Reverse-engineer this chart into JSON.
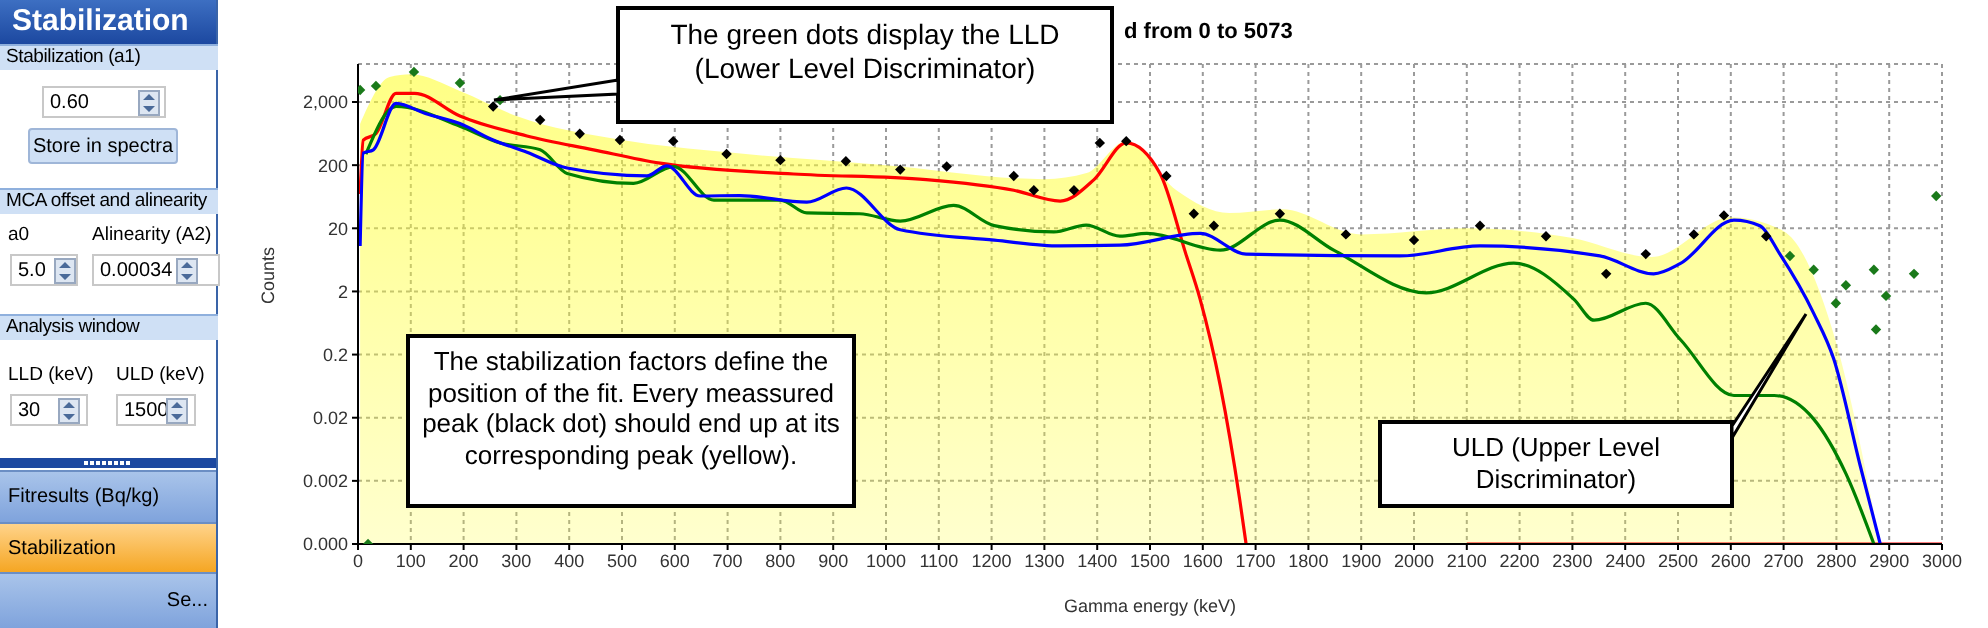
{
  "chart_data": {
    "type": "line",
    "title": "d from 0 to 5073",
    "xlabel": "Gamma energy (keV)",
    "ylabel": "Counts",
    "xlim": [
      0,
      3000
    ],
    "xticks": [
      0,
      100,
      200,
      300,
      400,
      500,
      600,
      700,
      800,
      900,
      1000,
      1100,
      1200,
      1300,
      1400,
      1500,
      1600,
      1700,
      1800,
      1900,
      2000,
      2100,
      2200,
      2300,
      2400,
      2500,
      2600,
      2700,
      2800,
      2900,
      3000
    ],
    "ylim": [
      0.0002,
      8000
    ],
    "log": true,
    "yticks": [
      {
        "value": 0.0002,
        "label": "0.000"
      },
      0.002,
      0.02,
      0.2,
      2,
      20,
      200,
      {
        "value": 2000,
        "label": "2,000"
      }
    ],
    "grid": true,
    "series": [
      {
        "type": "area",
        "color": "#ffff33",
        "x": [
          4,
          60,
          100,
          193,
          300,
          500,
          700,
          1000,
          1300,
          1380,
          1455,
          1550,
          1650,
          1750,
          1900,
          2100,
          2300,
          2450,
          2600,
          2700,
          2800,
          2883
        ],
        "values": [
          900,
          5000,
          5500,
          3000,
          1200,
          500,
          320,
          200,
          120,
          150,
          480,
          80,
          35,
          40,
          16,
          20,
          14,
          7,
          30,
          18,
          0.3,
          0.0002
        ]
      },
      {
        "color": "#ff0000",
        "x": [
          4,
          10,
          34,
          72,
          107,
          193,
          320,
          446,
          572,
          825,
          1076,
          1242,
          1330,
          1394,
          1455,
          1519,
          1568,
          1595,
          1633,
          1670,
          1682,
          1900,
          2100,
          3000
        ],
        "values": [
          70,
          500,
          630,
          2750,
          2750,
          1200,
          580,
          350,
          215,
          145,
          118,
          80,
          54,
          118,
          450,
          148,
          7.8,
          1.5,
          0.065,
          0.001,
          0.0002,
          null,
          0.0002,
          0.0002
        ]
      },
      {
        "color": "#008000",
        "x": [
          15,
          72,
          193,
          269,
          345,
          396,
          522,
          598,
          674,
          800,
          850,
          950,
          1027,
          1128,
          1205,
          1318,
          1379,
          1443,
          1494,
          1633,
          1746,
          1848,
          2023,
          2189,
          2303,
          2341,
          2439,
          2504,
          2606,
          2682,
          2757,
          2818,
          2871
        ],
        "values": [
          300,
          1700,
          830,
          450,
          350,
          148,
          103,
          190,
          56,
          56,
          35,
          34,
          26,
          46,
          22,
          17.5,
          22.5,
          15,
          16.6,
          9,
          27,
          9,
          1.9,
          5.6,
          1.5,
          0.7,
          1.3,
          0.35,
          0.045,
          0.045,
          0.019,
          0.0026,
          0.0002
        ]
      },
      {
        "color": "#0000ff",
        "x": [
          4,
          10,
          29,
          72,
          129,
          193,
          256,
          320,
          396,
          547,
          585,
          648,
          723,
          850,
          925,
          1027,
          1205,
          1330,
          1443,
          1595,
          1682,
          1973,
          2125,
          2352,
          2454,
          2504,
          2606,
          2655,
          2693,
          2757,
          2795,
          2845,
          2883
        ],
        "values": [
          10.5,
          310,
          350,
          1900,
          1300,
          910,
          500,
          320,
          180,
          135,
          195,
          65,
          66,
          52,
          87,
          19,
          13,
          10.5,
          10.8,
          16.6,
          7.8,
          7.3,
          10.5,
          7.3,
          3.8,
          5.5,
          27,
          22,
          7.8,
          0.9,
          0.17,
          0.0035,
          0.0002
        ]
      },
      {
        "type": "scatter",
        "marker": "diamond",
        "color": "#000000",
        "x": [
          256,
          345,
          420,
          496,
          597,
          698,
          800,
          924,
          1027,
          1115,
          1242,
          1280,
          1356,
          1405,
          1455,
          1531,
          1583,
          1621,
          1746,
          1871,
          2000,
          2125,
          2250,
          2364,
          2439,
          2530,
          2587,
          2667
        ],
        "values": [
          1700,
          1040,
          630,
          500,
          480,
          300,
          240,
          230,
          170,
          190,
          135,
          80,
          80,
          450,
          480,
          135,
          34,
          22,
          34,
          16,
          13,
          22,
          15,
          3.8,
          7.8,
          16,
          32,
          15
        ]
      },
      {
        "type": "scatter",
        "marker": "diamond",
        "color": "#1a7a1a",
        "x": [
          19,
          4,
          34,
          106,
          193,
          269,
          2712,
          2757,
          2799,
          2818,
          2871,
          2875,
          2894,
          2947,
          2989
        ],
        "values": [
          0.0002,
          3100,
          3600,
          6000,
          4000,
          2140,
          7.3,
          4.4,
          1.3,
          2.5,
          4.4,
          0.5,
          1.7,
          3.8,
          65
        ]
      }
    ],
    "annotations": [
      "The green dots display the LLD (Lower Level Discriminator)",
      "The stabilization factors define the position of the fit. Every meassured peak (black dot) should end up at its corresponding peak (yellow).",
      "ULD (Upper Level Discriminator)",
      "Stabilization",
      "Stabilization  (a1)",
      "0.60",
      "Store in spectra",
      "MCA offset and alinearity",
      "a0",
      "Alinearity (A2)",
      "5.0",
      "0.00034",
      "Analysis window",
      "LLD (keV)",
      "ULD (keV)",
      "30",
      "1500",
      "Fitresults (Bq/kg)",
      "Stabilization",
      "Se..."
    ]
  }
}
